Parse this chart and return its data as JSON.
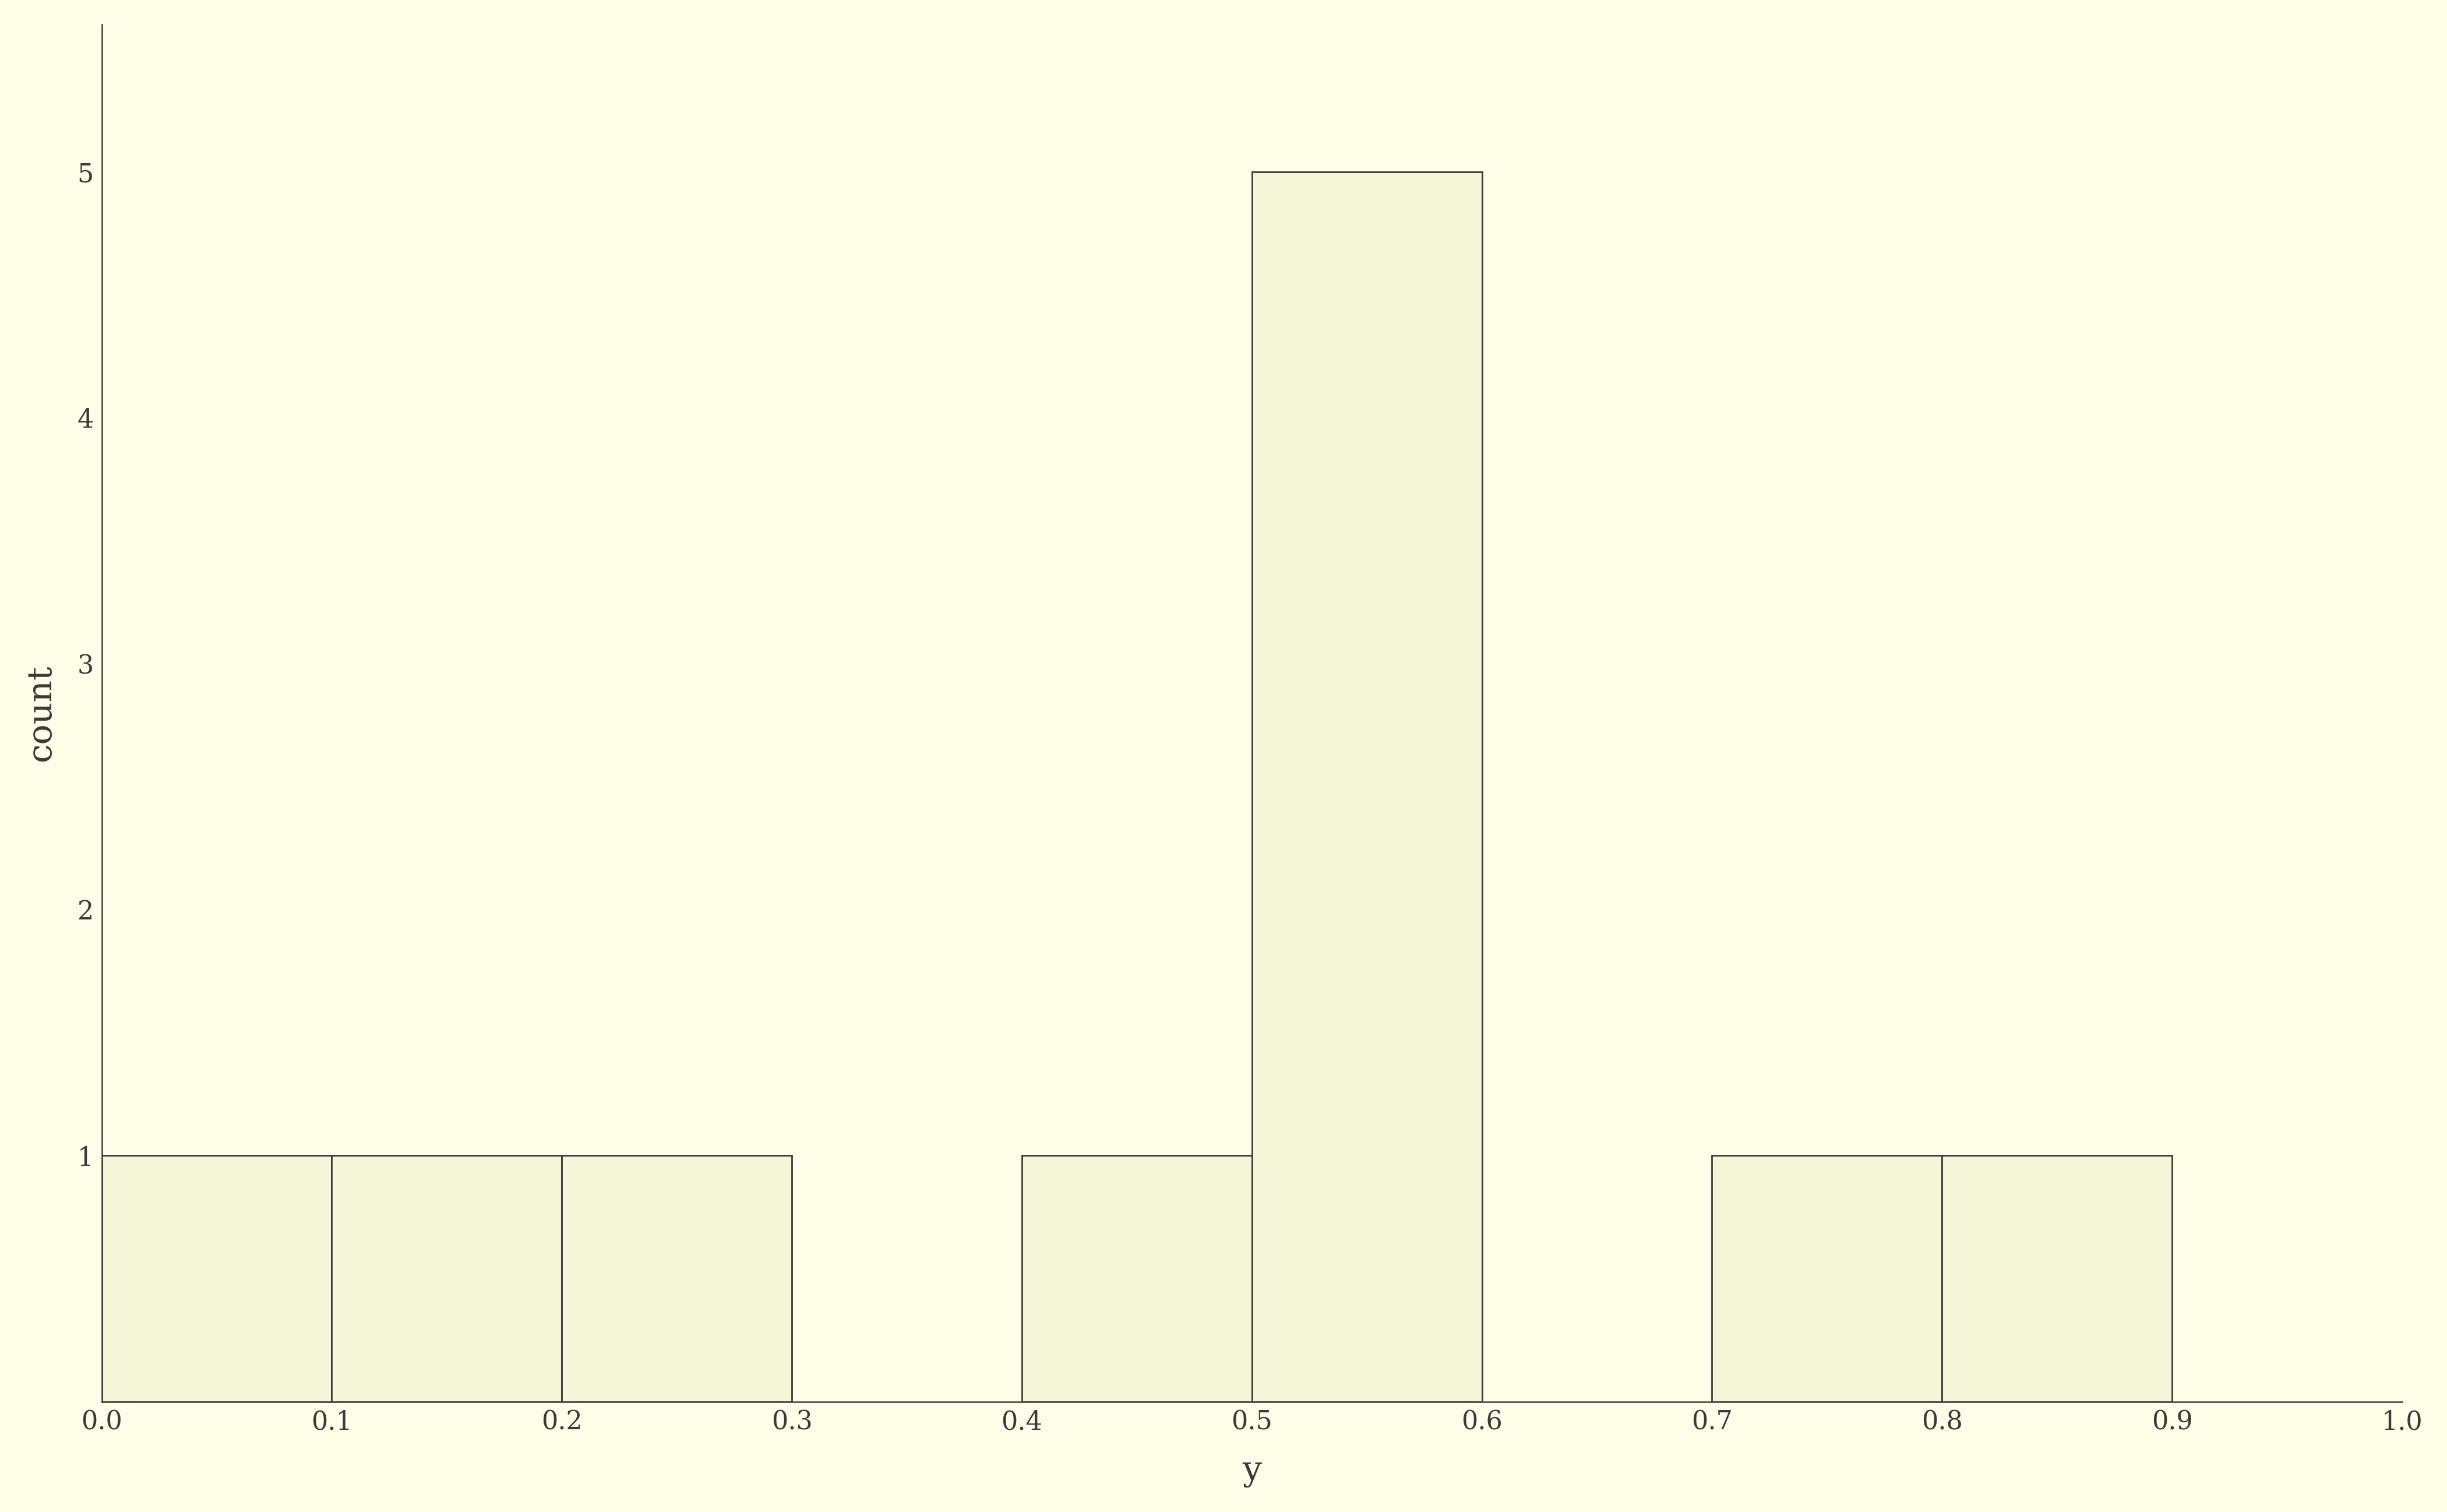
{
  "title": "",
  "xlabel": "y",
  "ylabel": "count",
  "background_color": "#fefee8",
  "bar_face_color": "#f5f5d8",
  "bar_edge_color": "#3a3a3a",
  "xlim": [
    0.0,
    1.0
  ],
  "ylim": [
    0,
    5.6
  ],
  "xticks": [
    0.0,
    0.1,
    0.2,
    0.3,
    0.4,
    0.5,
    0.6,
    0.7,
    0.8,
    0.9,
    1.0
  ],
  "yticks": [
    1,
    2,
    3,
    4,
    5
  ],
  "bin_edges": [
    0.0,
    0.1,
    0.2,
    0.3,
    0.4,
    0.5,
    0.6,
    0.7,
    0.8,
    0.9,
    1.0
  ],
  "counts": [
    1,
    1,
    1,
    0,
    1,
    5,
    0,
    1,
    1,
    0
  ],
  "tick_label_fontsize": 32,
  "axis_label_fontsize": 42,
  "tick_color": "#3a3a3a",
  "label_color": "#3a3a3a",
  "spine_color": "#3a3a3a",
  "bar_linewidth": 2.0
}
